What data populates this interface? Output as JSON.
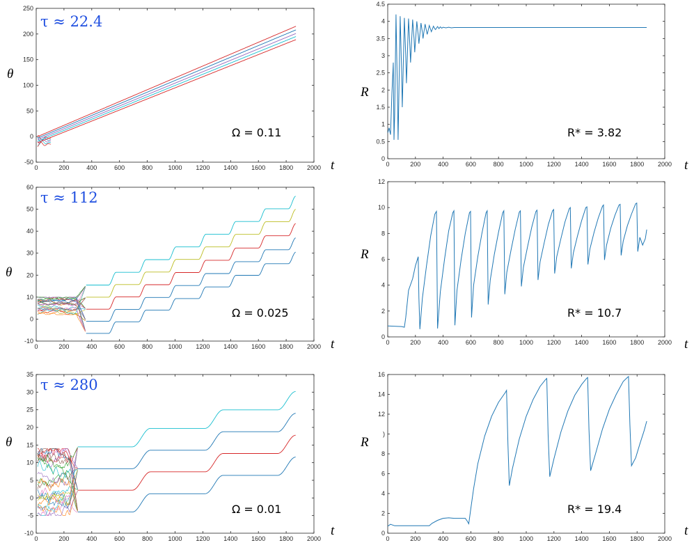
{
  "chart_data": [
    {
      "type": "line",
      "series_kind": "theta",
      "panel": "theta-1",
      "tau_label": "τ ≈ 22.4",
      "annotation": "Ω = 0.11",
      "xlabel": "t",
      "ylabel": "θ",
      "xlim": [
        0,
        2000
      ],
      "ylim": [
        -50,
        250
      ],
      "xticks": [
        0,
        200,
        400,
        600,
        800,
        1000,
        1200,
        1400,
        1600,
        1800,
        2000
      ],
      "yticks": [
        -50,
        0,
        50,
        100,
        150,
        200,
        250
      ],
      "t_end": 1870,
      "transient_end": 110,
      "branches": [
        {
          "t_start": 10,
          "start": 0,
          "end": 215,
          "color": "#d62728"
        },
        {
          "t_start": 10,
          "start": -3,
          "end": 208,
          "color": "#1f77b4"
        },
        {
          "t_start": 10,
          "start": -6,
          "end": 201,
          "color": "#9467bd"
        },
        {
          "t_start": 10,
          "start": -9,
          "end": 195,
          "color": "#17becf"
        },
        {
          "t_start": 10,
          "start": -12,
          "end": 189,
          "color": "#d62728"
        }
      ]
    },
    {
      "type": "line",
      "series_kind": "R",
      "panel": "R-1",
      "annotation": "R* = 3.82",
      "xlabel": "t",
      "ylabel": "R",
      "xlim": [
        0,
        2000
      ],
      "ylim": [
        0,
        4.5
      ],
      "xticks": [
        0,
        200,
        400,
        600,
        800,
        1000,
        1200,
        1400,
        1600,
        1800,
        2000
      ],
      "yticks": [
        0,
        0.5,
        1,
        1.5,
        2,
        2.5,
        3,
        3.5,
        4,
        4.5
      ],
      "t_end": 1870,
      "x": [
        0,
        10,
        20,
        30,
        40,
        45,
        50,
        60,
        70,
        75,
        80,
        90,
        100,
        105,
        110,
        120,
        130,
        135,
        140,
        150,
        160,
        165,
        170,
        180,
        190,
        195,
        200,
        210,
        220,
        225,
        230,
        240,
        250,
        255,
        260,
        270,
        280,
        285,
        290,
        300,
        310,
        315,
        320,
        330,
        340,
        345,
        350,
        360,
        370,
        380,
        390,
        400,
        420,
        440,
        460,
        480,
        500,
        540,
        580,
        620,
        700,
        800,
        1000,
        1200,
        1400,
        1600,
        1870
      ],
      "values": [
        0.75,
        0.9,
        0.7,
        1.9,
        2.8,
        0.55,
        1.3,
        4.2,
        2.0,
        0.55,
        1.7,
        4.15,
        2.6,
        1.5,
        2.3,
        4.1,
        3.0,
        2.2,
        2.8,
        4.08,
        3.3,
        2.8,
        3.2,
        4.05,
        3.5,
        3.1,
        3.4,
        4.0,
        3.6,
        3.35,
        3.55,
        3.95,
        3.68,
        3.5,
        3.65,
        3.92,
        3.72,
        3.62,
        3.7,
        3.88,
        3.76,
        3.7,
        3.75,
        3.86,
        3.78,
        3.76,
        3.79,
        3.85,
        3.79,
        3.84,
        3.8,
        3.83,
        3.81,
        3.83,
        3.81,
        3.82,
        3.82,
        3.82,
        3.82,
        3.82,
        3.82,
        3.82,
        3.82,
        3.82,
        3.82,
        3.82,
        3.82
      ]
    },
    {
      "type": "line",
      "series_kind": "theta",
      "panel": "theta-2",
      "tau_label": "τ ≈ 112",
      "annotation": "Ω = 0.025",
      "xlabel": "t",
      "ylabel": "θ",
      "xlim": [
        0,
        2000
      ],
      "ylim": [
        -10,
        60
      ],
      "xticks": [
        0,
        200,
        400,
        600,
        800,
        1000,
        1200,
        1400,
        1600,
        1800,
        2000
      ],
      "yticks": [
        -10,
        0,
        10,
        20,
        30,
        40,
        50,
        60
      ],
      "t_end": 1870,
      "transient_end": 360,
      "noise_band": [
        2,
        10
      ],
      "branches": [
        {
          "t_start": 360,
          "start": 15.5,
          "end": 56,
          "color": "#17becf"
        },
        {
          "t_start": 360,
          "start": 10,
          "end": 50,
          "color": "#bcbd22"
        },
        {
          "t_start": 360,
          "start": 4.5,
          "end": 43.5,
          "color": "#d62728"
        },
        {
          "t_start": 360,
          "start": -1,
          "end": 37,
          "color": "#1f77b4"
        },
        {
          "t_start": 360,
          "start": -6.5,
          "end": 30.5,
          "color": "#1f77b4"
        }
      ]
    },
    {
      "type": "line",
      "series_kind": "R",
      "panel": "R-2",
      "annotation": "R* = 10.7",
      "xlabel": "t",
      "ylabel": "R",
      "xlim": [
        0,
        2000
      ],
      "ylim": [
        0,
        12
      ],
      "xticks": [
        0,
        200,
        400,
        600,
        800,
        1000,
        1200,
        1400,
        1600,
        1800,
        2000
      ],
      "yticks": [
        0,
        2,
        4,
        6,
        8,
        10,
        12
      ],
      "t_end": 1870,
      "x": [
        0,
        100,
        120,
        130,
        150,
        180,
        200,
        220,
        225,
        232,
        250,
        280,
        310,
        340,
        352,
        360,
        380,
        410,
        440,
        470,
        478,
        485,
        500,
        530,
        560,
        590,
        598,
        605,
        620,
        650,
        680,
        710,
        718,
        725,
        740,
        770,
        800,
        830,
        838,
        845,
        860,
        890,
        920,
        950,
        958,
        965,
        980,
        1010,
        1040,
        1070,
        1078,
        1085,
        1100,
        1130,
        1160,
        1190,
        1198,
        1205,
        1220,
        1250,
        1280,
        1310,
        1318,
        1325,
        1340,
        1370,
        1400,
        1430,
        1438,
        1445,
        1460,
        1490,
        1520,
        1550,
        1558,
        1565,
        1580,
        1610,
        1640,
        1670,
        1678,
        1685,
        1700,
        1730,
        1760,
        1790,
        1798,
        1805,
        1820,
        1840,
        1860,
        1870
      ],
      "values": [
        0.85,
        0.8,
        0.75,
        1.5,
        3.6,
        4.5,
        5.5,
        6.2,
        3.0,
        0.6,
        3.0,
        5.5,
        7.8,
        9.5,
        9.7,
        0.65,
        3.5,
        6.0,
        8.2,
        9.6,
        9.75,
        0.9,
        3.6,
        6.0,
        8.0,
        9.6,
        9.7,
        1.5,
        4.0,
        6.2,
        8.0,
        9.6,
        9.75,
        2.5,
        4.4,
        6.4,
        8.1,
        9.6,
        9.75,
        3.3,
        5.0,
        6.7,
        8.3,
        9.65,
        9.75,
        3.9,
        5.4,
        7.0,
        8.5,
        9.7,
        9.8,
        4.4,
        5.8,
        7.3,
        8.7,
        9.75,
        9.85,
        4.9,
        6.2,
        7.6,
        8.9,
        9.9,
        10.0,
        5.3,
        6.5,
        7.8,
        9.0,
        10.0,
        10.05,
        5.6,
        6.8,
        8.1,
        9.2,
        10.1,
        10.2,
        5.95,
        7.1,
        8.4,
        9.4,
        10.2,
        10.25,
        6.3,
        7.4,
        8.6,
        9.5,
        10.3,
        10.35,
        6.6,
        7.7,
        7.1,
        7.6,
        8.3
      ]
    },
    {
      "type": "line",
      "series_kind": "theta",
      "panel": "theta-3",
      "tau_label": "τ ≈ 280",
      "annotation": "Ω = 0.01",
      "xlabel": "t",
      "ylabel": "θ",
      "xlim": [
        0,
        2000
      ],
      "ylim": [
        -10,
        35
      ],
      "xticks": [
        0,
        200,
        400,
        600,
        800,
        1000,
        1200,
        1400,
        1600,
        1800,
        2000
      ],
      "yticks": [
        -10,
        -5,
        0,
        5,
        10,
        15,
        20,
        25,
        30,
        35
      ],
      "t_end": 1870,
      "transient_end": 300,
      "noise_band": [
        -5,
        14
      ],
      "branches": [
        {
          "t_start": 300,
          "start": 14.5,
          "end": 30.2,
          "color": "#17becf"
        },
        {
          "t_start": 300,
          "start": 8.3,
          "end": 24,
          "color": "#1f77b4"
        },
        {
          "t_start": 300,
          "start": 2.2,
          "end": 17.8,
          "color": "#d62728"
        },
        {
          "t_start": 300,
          "start": -4,
          "end": 11.6,
          "color": "#1f77b4"
        }
      ]
    },
    {
      "type": "line",
      "series_kind": "R",
      "panel": "R-3",
      "annotation": "R* = 19.4",
      "xlabel": "t",
      "ylabel": "R",
      "xlim": [
        0,
        2000
      ],
      "ylim": [
        0,
        16
      ],
      "xticks": [
        0,
        200,
        400,
        600,
        800,
        1000,
        1200,
        1400,
        1600,
        1800,
        2000
      ],
      "yticks": [
        0,
        2,
        4,
        6,
        8,
        10,
        12,
        14,
        16
      ],
      "ytick_labels": [
        "0",
        "2",
        "4",
        "6",
        "8",
        ")",
        "12",
        "14",
        "16"
      ],
      "t_end": 1870,
      "x": [
        0,
        20,
        50,
        100,
        200,
        300,
        320,
        360,
        400,
        440,
        480,
        520,
        560,
        575,
        585,
        600,
        620,
        650,
        700,
        750,
        800,
        850,
        858,
        868,
        878,
        900,
        950,
        1000,
        1050,
        1100,
        1140,
        1148,
        1158,
        1170,
        1200,
        1250,
        1300,
        1350,
        1400,
        1435,
        1443,
        1453,
        1465,
        1500,
        1550,
        1600,
        1650,
        1700,
        1730,
        1738,
        1748,
        1760,
        1790,
        1820,
        1850,
        1870
      ],
      "values": [
        0.7,
        0.9,
        0.75,
        0.75,
        0.75,
        0.75,
        1.0,
        1.3,
        1.5,
        1.55,
        1.5,
        1.5,
        1.5,
        1.2,
        0.95,
        2.5,
        4.5,
        7.0,
        9.8,
        11.8,
        13.2,
        14.2,
        14.4,
        9.0,
        4.8,
        6.5,
        9.5,
        11.8,
        13.5,
        14.8,
        15.5,
        15.6,
        10.0,
        5.7,
        7.5,
        10.2,
        12.3,
        13.9,
        15.0,
        15.6,
        15.7,
        10.5,
        6.3,
        8.0,
        10.5,
        12.5,
        14.0,
        15.3,
        15.7,
        15.8,
        11.0,
        6.8,
        7.6,
        9.0,
        10.3,
        11.3
      ]
    }
  ]
}
